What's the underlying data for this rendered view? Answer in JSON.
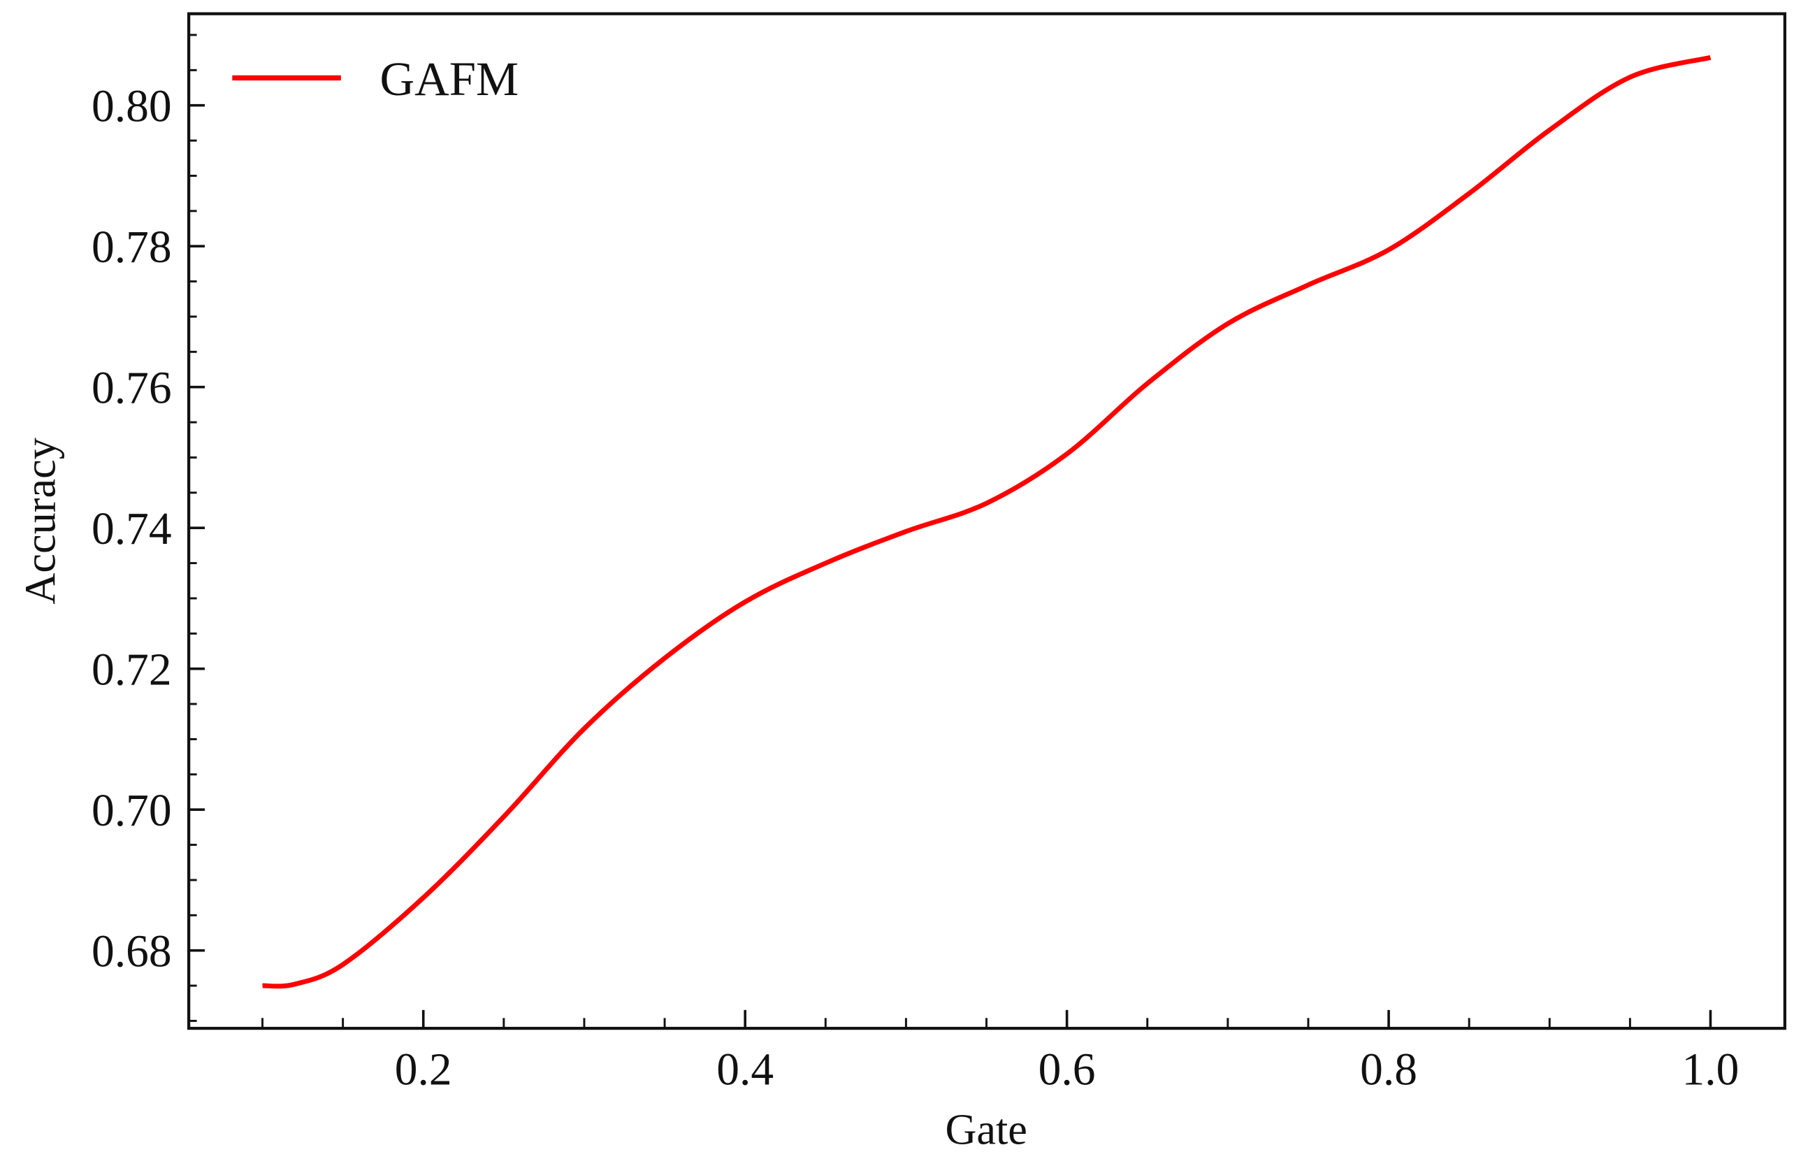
{
  "chart_data": {
    "type": "line",
    "title": "",
    "xlabel": "Gate",
    "ylabel": "Accuracy",
    "xlim": [
      0.055,
      1.05
    ],
    "ylim": [
      0.667,
      0.813
    ],
    "x_ticks": [
      0.2,
      0.4,
      0.6,
      0.8,
      1.0
    ],
    "x_tick_labels": [
      "0.2",
      "0.4",
      "0.6",
      "0.8",
      "1.0"
    ],
    "x_minor_step": 0.05,
    "y_ticks": [
      0.68,
      0.7,
      0.72,
      0.74,
      0.76,
      0.78,
      0.8
    ],
    "y_tick_labels": [
      "0.68",
      "0.70",
      "0.72",
      "0.74",
      "0.76",
      "0.78",
      "0.80"
    ],
    "y_minor_step": 0.005,
    "grid": false,
    "legend_position": "upper left",
    "series": [
      {
        "name": "GAFM",
        "color": "#ff0000",
        "x": [
          0.1,
          0.12,
          0.15,
          0.2,
          0.25,
          0.3,
          0.35,
          0.4,
          0.45,
          0.5,
          0.55,
          0.6,
          0.65,
          0.7,
          0.75,
          0.8,
          0.85,
          0.9,
          0.95,
          1.0
        ],
        "values": [
          0.675,
          0.6752,
          0.678,
          0.6875,
          0.699,
          0.7115,
          0.7215,
          0.7295,
          0.735,
          0.7395,
          0.7435,
          0.7505,
          0.7605,
          0.769,
          0.7745,
          0.7795,
          0.7875,
          0.7965,
          0.804,
          0.8068
        ]
      }
    ]
  },
  "legend": {
    "items": [
      {
        "label": "GAFM",
        "color": "#ff0000"
      }
    ]
  },
  "axes": {
    "x_label": "Gate",
    "y_label": "Accuracy"
  }
}
